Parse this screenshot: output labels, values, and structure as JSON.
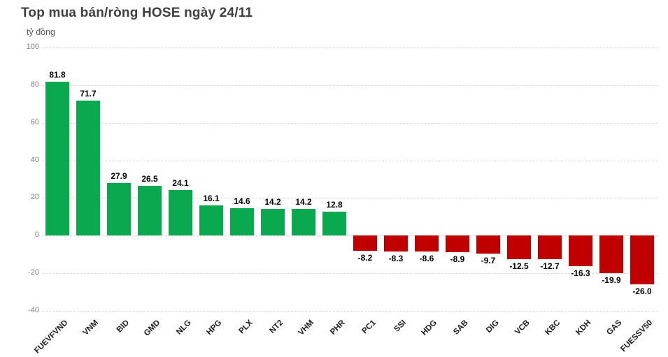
{
  "title": "Top mua bán/ròng HOSE ngày 24/11",
  "unit_label": "tỷ đồng",
  "colors": {
    "positive_bar": "#0ba94f",
    "negative_bar": "#c00000",
    "gridline": "#d9d9d9",
    "title_text": "#3f3f3f",
    "axis_tick_text": "#7f7f7f",
    "value_label_text": "#000000"
  },
  "chart_data": {
    "type": "bar",
    "title": "Top mua bán/ròng HOSE ngày 24/11",
    "xlabel": "",
    "ylabel": "tỷ đồng",
    "ylim": [
      -40,
      100
    ],
    "yticks": [
      100,
      80,
      60,
      40,
      20,
      0,
      -20,
      -40
    ],
    "grid": "horizontal-dashed",
    "legend_position": "none",
    "value_labels": "one-decimal, outside bar end",
    "category_label_rotation_deg": -45,
    "categories": [
      "FUEVFVND",
      "VNM",
      "BID",
      "GMD",
      "NLG",
      "HPG",
      "PLX",
      "NT2",
      "VHM",
      "PHR",
      "PC1",
      "SSI",
      "HDG",
      "SAB",
      "DIG",
      "VCB",
      "KBC",
      "KDH",
      "GAS",
      "FUESSV50"
    ],
    "values": [
      81.8,
      71.7,
      27.9,
      26.5,
      24.1,
      16.1,
      14.6,
      14.2,
      14.2,
      12.8,
      -8.2,
      -8.3,
      -8.6,
      -8.9,
      -9.7,
      -12.5,
      -12.7,
      -16.3,
      -19.9,
      -26.0
    ]
  }
}
